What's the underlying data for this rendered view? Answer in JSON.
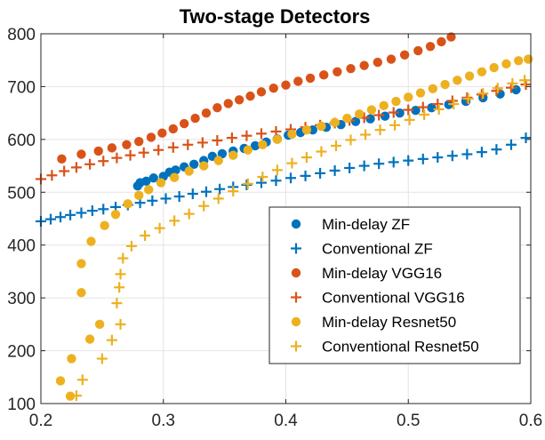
{
  "chart_data": {
    "type": "scatter",
    "title": "Two-stage Detectors",
    "xlabel": "",
    "ylabel": "",
    "xlim": [
      0.2,
      0.6
    ],
    "ylim": [
      100,
      800
    ],
    "xticks": [
      0.2,
      0.3,
      0.4,
      0.5,
      0.6
    ],
    "xtick_labels": [
      "0.2",
      "0.3",
      "0.4",
      "0.5",
      "0.6"
    ],
    "yticks": [
      100,
      200,
      300,
      400,
      500,
      600,
      700,
      800
    ],
    "ytick_labels": [
      "100",
      "200",
      "300",
      "400",
      "500",
      "600",
      "700",
      "800"
    ],
    "grid": true,
    "legend_position": "lower-right",
    "series": [
      {
        "name": "Min-delay ZF",
        "marker": "dot",
        "color": "#0072BD",
        "points": [
          [
            0.279,
            512
          ],
          [
            0.281,
            518
          ],
          [
            0.286,
            521
          ],
          [
            0.292,
            527
          ],
          [
            0.3,
            530
          ],
          [
            0.305,
            538
          ],
          [
            0.31,
            542
          ],
          [
            0.317,
            548
          ],
          [
            0.325,
            553
          ],
          [
            0.333,
            560
          ],
          [
            0.34,
            568
          ],
          [
            0.348,
            573
          ],
          [
            0.357,
            578
          ],
          [
            0.366,
            583
          ],
          [
            0.375,
            588
          ],
          [
            0.384,
            595
          ],
          [
            0.393,
            601
          ],
          [
            0.402,
            608
          ],
          [
            0.412,
            613
          ],
          [
            0.422,
            618
          ],
          [
            0.433,
            623
          ],
          [
            0.445,
            628
          ],
          [
            0.457,
            634
          ],
          [
            0.469,
            639
          ],
          [
            0.481,
            644
          ],
          [
            0.493,
            650
          ],
          [
            0.506,
            655
          ],
          [
            0.519,
            660
          ],
          [
            0.533,
            666
          ],
          [
            0.547,
            672
          ],
          [
            0.561,
            679
          ],
          [
            0.575,
            686
          ],
          [
            0.588,
            694
          ]
        ]
      },
      {
        "name": "Conventional ZF",
        "marker": "plus",
        "color": "#0072BD",
        "points": [
          [
            0.2,
            445
          ],
          [
            0.208,
            449
          ],
          [
            0.216,
            453
          ],
          [
            0.224,
            457
          ],
          [
            0.233,
            461
          ],
          [
            0.242,
            465
          ],
          [
            0.251,
            468
          ],
          [
            0.261,
            472
          ],
          [
            0.271,
            476
          ],
          [
            0.281,
            480
          ],
          [
            0.291,
            484
          ],
          [
            0.302,
            488
          ],
          [
            0.313,
            492
          ],
          [
            0.324,
            497
          ],
          [
            0.335,
            501
          ],
          [
            0.346,
            506
          ],
          [
            0.357,
            510
          ],
          [
            0.368,
            514
          ],
          [
            0.38,
            518
          ],
          [
            0.392,
            522
          ],
          [
            0.404,
            527
          ],
          [
            0.416,
            531
          ],
          [
            0.428,
            536
          ],
          [
            0.44,
            541
          ],
          [
            0.452,
            546
          ],
          [
            0.464,
            550
          ],
          [
            0.476,
            554
          ],
          [
            0.488,
            557
          ],
          [
            0.5,
            560
          ],
          [
            0.512,
            563
          ],
          [
            0.524,
            566
          ],
          [
            0.536,
            569
          ],
          [
            0.548,
            572
          ],
          [
            0.56,
            576
          ],
          [
            0.572,
            581
          ],
          [
            0.584,
            590
          ],
          [
            0.596,
            603
          ]
        ]
      },
      {
        "name": "Min-delay VGG16",
        "marker": "dot",
        "color": "#D95319",
        "points": [
          [
            0.217,
            563
          ],
          [
            0.233,
            572
          ],
          [
            0.247,
            578
          ],
          [
            0.258,
            584
          ],
          [
            0.27,
            590
          ],
          [
            0.28,
            596
          ],
          [
            0.29,
            604
          ],
          [
            0.299,
            612
          ],
          [
            0.308,
            620
          ],
          [
            0.317,
            630
          ],
          [
            0.326,
            640
          ],
          [
            0.335,
            650
          ],
          [
            0.344,
            660
          ],
          [
            0.353,
            668
          ],
          [
            0.362,
            675
          ],
          [
            0.371,
            682
          ],
          [
            0.38,
            690
          ],
          [
            0.39,
            697
          ],
          [
            0.4,
            703
          ],
          [
            0.41,
            710
          ],
          [
            0.42,
            716
          ],
          [
            0.431,
            722
          ],
          [
            0.442,
            728
          ],
          [
            0.453,
            734
          ],
          [
            0.464,
            740
          ],
          [
            0.475,
            746
          ],
          [
            0.486,
            752
          ],
          [
            0.497,
            760
          ],
          [
            0.508,
            768
          ],
          [
            0.518,
            776
          ],
          [
            0.527,
            785
          ],
          [
            0.535,
            794
          ]
        ]
      },
      {
        "name": "Conventional VGG16",
        "marker": "plus",
        "color": "#D95319",
        "points": [
          [
            0.2,
            525
          ],
          [
            0.209,
            532
          ],
          [
            0.219,
            540
          ],
          [
            0.229,
            547
          ],
          [
            0.24,
            553
          ],
          [
            0.251,
            559
          ],
          [
            0.262,
            565
          ],
          [
            0.273,
            570
          ],
          [
            0.284,
            575
          ],
          [
            0.296,
            580
          ],
          [
            0.308,
            585
          ],
          [
            0.32,
            590
          ],
          [
            0.332,
            594
          ],
          [
            0.344,
            598
          ],
          [
            0.356,
            603
          ],
          [
            0.368,
            607
          ],
          [
            0.38,
            611
          ],
          [
            0.392,
            615
          ],
          [
            0.404,
            619
          ],
          [
            0.416,
            623
          ],
          [
            0.428,
            627
          ],
          [
            0.44,
            631
          ],
          [
            0.452,
            636
          ],
          [
            0.464,
            641
          ],
          [
            0.476,
            646
          ],
          [
            0.488,
            651
          ],
          [
            0.5,
            656
          ],
          [
            0.512,
            661
          ],
          [
            0.524,
            667
          ],
          [
            0.536,
            673
          ],
          [
            0.548,
            679
          ],
          [
            0.56,
            685
          ],
          [
            0.572,
            692
          ],
          [
            0.584,
            698
          ],
          [
            0.596,
            704
          ]
        ]
      },
      {
        "name": "Min-delay Resnet50",
        "marker": "dot",
        "color": "#EDB120",
        "points": [
          [
            0.224,
            114
          ],
          [
            0.216,
            143
          ],
          [
            0.225,
            185
          ],
          [
            0.233,
            310
          ],
          [
            0.233,
            365
          ],
          [
            0.24,
            222
          ],
          [
            0.241,
            407
          ],
          [
            0.248,
            250
          ],
          [
            0.252,
            437
          ],
          [
            0.261,
            458
          ],
          [
            0.271,
            478
          ],
          [
            0.28,
            494
          ],
          [
            0.288,
            505
          ],
          [
            0.298,
            518
          ],
          [
            0.309,
            528
          ],
          [
            0.321,
            540
          ],
          [
            0.333,
            550
          ],
          [
            0.345,
            560
          ],
          [
            0.357,
            570
          ],
          [
            0.369,
            580
          ],
          [
            0.381,
            590
          ],
          [
            0.393,
            600
          ],
          [
            0.405,
            610
          ],
          [
            0.417,
            618
          ],
          [
            0.429,
            625
          ],
          [
            0.44,
            632
          ],
          [
            0.45,
            640
          ],
          [
            0.46,
            648
          ],
          [
            0.47,
            656
          ],
          [
            0.48,
            664
          ],
          [
            0.49,
            672
          ],
          [
            0.5,
            680
          ],
          [
            0.51,
            688
          ],
          [
            0.52,
            696
          ],
          [
            0.53,
            704
          ],
          [
            0.54,
            712
          ],
          [
            0.55,
            720
          ],
          [
            0.56,
            728
          ],
          [
            0.57,
            736
          ],
          [
            0.58,
            743
          ],
          [
            0.59,
            749
          ],
          [
            0.598,
            752
          ]
        ]
      },
      {
        "name": "Conventional Resnet50",
        "marker": "plus",
        "color": "#EDB120",
        "points": [
          [
            0.229,
            115
          ],
          [
            0.234,
            145
          ],
          [
            0.25,
            185
          ],
          [
            0.258,
            220
          ],
          [
            0.265,
            250
          ],
          [
            0.262,
            290
          ],
          [
            0.264,
            320
          ],
          [
            0.265,
            345
          ],
          [
            0.267,
            375
          ],
          [
            0.274,
            398
          ],
          [
            0.285,
            418
          ],
          [
            0.297,
            432
          ],
          [
            0.309,
            446
          ],
          [
            0.321,
            459
          ],
          [
            0.333,
            474
          ],
          [
            0.345,
            488
          ],
          [
            0.357,
            502
          ],
          [
            0.369,
            516
          ],
          [
            0.381,
            529
          ],
          [
            0.393,
            542
          ],
          [
            0.405,
            555
          ],
          [
            0.417,
            566
          ],
          [
            0.429,
            577
          ],
          [
            0.441,
            588
          ],
          [
            0.453,
            599
          ],
          [
            0.465,
            609
          ],
          [
            0.477,
            618
          ],
          [
            0.489,
            627
          ],
          [
            0.501,
            637
          ],
          [
            0.513,
            647
          ],
          [
            0.525,
            657
          ],
          [
            0.537,
            667
          ],
          [
            0.549,
            677
          ],
          [
            0.561,
            687
          ],
          [
            0.573,
            697
          ],
          [
            0.585,
            706
          ],
          [
            0.595,
            712
          ]
        ]
      }
    ]
  }
}
